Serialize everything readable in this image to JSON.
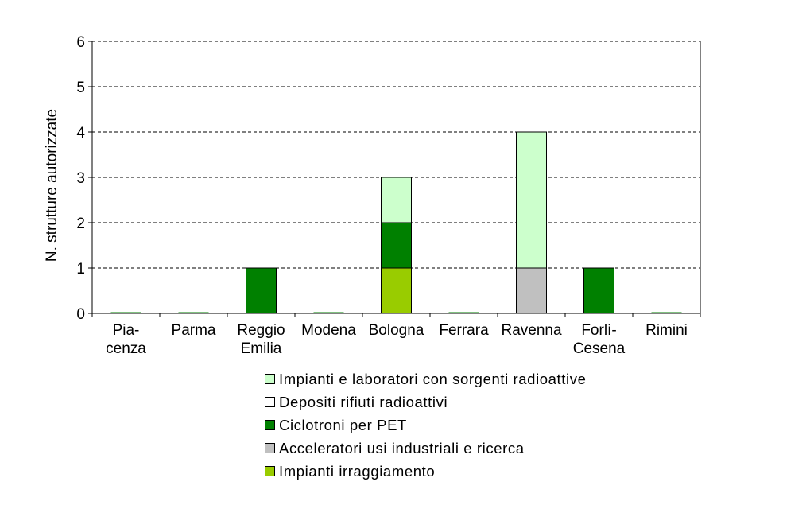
{
  "chart_data": {
    "type": "bar",
    "stacked": true,
    "categories": [
      [
        "Pia-",
        "cenza"
      ],
      [
        "Parma"
      ],
      [
        "Reggio",
        "Emilia"
      ],
      [
        "Modena"
      ],
      [
        "Bologna"
      ],
      [
        "Ferrara"
      ],
      [
        "Ravenna"
      ],
      [
        "Forlì-",
        "Cesena"
      ],
      [
        "Rimini"
      ]
    ],
    "series": [
      {
        "name": "Impianti irraggiamento",
        "color": "#99cc00",
        "values": [
          0,
          0,
          0,
          0,
          1,
          0,
          0,
          0,
          0
        ]
      },
      {
        "name": "Acceleratori usi industriali e ricerca",
        "color": "#c0c0c0",
        "values": [
          0,
          0,
          0,
          0,
          0,
          0,
          1,
          0,
          0
        ]
      },
      {
        "name": "Ciclotroni per PET",
        "color": "#008000",
        "values": [
          0,
          0,
          1,
          0,
          1,
          0,
          0,
          1,
          0
        ]
      },
      {
        "name": "Depositi rifiuti radioattivi",
        "color": "#ffffff",
        "values": [
          0,
          0,
          0,
          0,
          0,
          0,
          0,
          0,
          0
        ]
      },
      {
        "name": "Impianti e laboratori con sorgenti radioattive",
        "color": "#ccffcc",
        "values": [
          0,
          0,
          0,
          0,
          1,
          0,
          3,
          0,
          0
        ]
      }
    ],
    "legend_order": [
      "Impianti e laboratori con sorgenti radioattive",
      "Depositi rifiuti radioattivi",
      "Ciclotroni per PET",
      "Acceleratori usi industriali e ricerca",
      "Impianti irraggiamento"
    ],
    "ylabel": "N. strutture autorizzate",
    "xlabel": "",
    "ylim": [
      0,
      6
    ],
    "yticks": [
      "0",
      "1",
      "2",
      "3",
      "4",
      "5",
      "6"
    ],
    "grid": "horizontal dashed",
    "legend_position": "bottom"
  }
}
